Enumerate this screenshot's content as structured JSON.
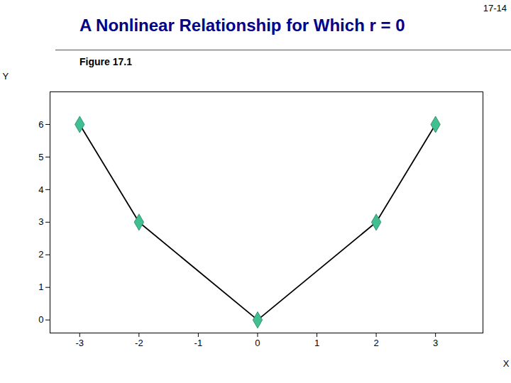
{
  "chart_data": {
    "type": "line",
    "title": "A Nonlinear Relationship for Which r = 0",
    "subtitle": "Figure 17.1",
    "annotations": [
      "17-14"
    ],
    "x_label": "X",
    "y_label": "Y",
    "x": [
      -3,
      -2,
      0,
      2,
      3
    ],
    "values": [
      6,
      3,
      0,
      3,
      6
    ],
    "color": "#000000",
    "colors": [
      "#40C090",
      "#40C090",
      "#40C090",
      "#40C090",
      "#40C090"
    ],
    "marker": "diamond",
    "line_style": "solid",
    "xlim": [
      -3.5,
      3.8
    ],
    "ylim": [
      -0.4,
      7.0
    ],
    "xticks": [
      -3,
      -2,
      -1,
      0,
      1,
      2,
      3
    ],
    "yticks": [
      0,
      1,
      2,
      3,
      4,
      5,
      6
    ],
    "grid": false
  }
}
